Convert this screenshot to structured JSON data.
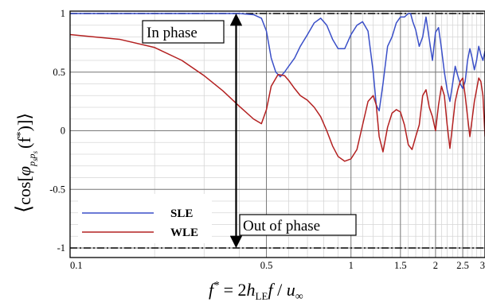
{
  "chart_data": {
    "type": "line",
    "title": "",
    "xscale": "log",
    "xlim": [
      0.1,
      3
    ],
    "ylim": [
      -1.1,
      1.1
    ],
    "grid": true,
    "legend_position": "bottom-left",
    "xlabel": {
      "lhs": "f",
      "lhs_sup": "*",
      "eq": " = 2",
      "h": "h",
      "h_sub": "LE",
      "f": "f",
      "slash": " / ",
      "u": "u",
      "u_sub": "∞"
    },
    "ylabel": {
      "open": "⟨",
      "cos": "cos[",
      "phi": "φ",
      "sub": "p",
      "sub2": "s",
      "sub3": "p",
      "sub4": "s",
      "arg": "(f",
      "argsup": "*",
      "close": ")]⟩"
    },
    "xticks": [
      {
        "v": 0.1,
        "label": "0.1"
      },
      {
        "v": 0.5,
        "label": "0.5"
      },
      {
        "v": 1,
        "label": "1"
      },
      {
        "v": 1.5,
        "label": "1.5"
      },
      {
        "v": 2,
        "label": "2"
      },
      {
        "v": 2.5,
        "label": "2.5"
      },
      {
        "v": 3,
        "label": "3"
      }
    ],
    "yticks": [
      {
        "v": 1,
        "label": "1"
      },
      {
        "v": 0.5,
        "label": "0.5"
      },
      {
        "v": 0,
        "label": "0"
      },
      {
        "v": -0.5,
        "label": "-0.5"
      },
      {
        "v": -1,
        "label": "-1"
      }
    ],
    "reference_lines": [
      1,
      -1
    ],
    "annotations": {
      "in_phase": "In phase",
      "out_of_phase": "Out of phase",
      "arrow_x": 0.39,
      "arrow_y": [
        1,
        -1
      ]
    },
    "series": [
      {
        "name": "SLE",
        "color": "#3a4fc8",
        "x": [
          0.1,
          0.2,
          0.3,
          0.4,
          0.45,
          0.48,
          0.5,
          0.52,
          0.54,
          0.56,
          0.58,
          0.6,
          0.63,
          0.66,
          0.7,
          0.74,
          0.78,
          0.82,
          0.86,
          0.9,
          0.95,
          1.0,
          1.05,
          1.1,
          1.15,
          1.2,
          1.23,
          1.26,
          1.3,
          1.35,
          1.4,
          1.45,
          1.5,
          1.55,
          1.6,
          1.63,
          1.66,
          1.7,
          1.75,
          1.8,
          1.85,
          1.9,
          1.95,
          2.0,
          2.05,
          2.1,
          2.15,
          2.2,
          2.25,
          2.3,
          2.35,
          2.4,
          2.45,
          2.5,
          2.55,
          2.6,
          2.65,
          2.7,
          2.75,
          2.8,
          2.85,
          2.9,
          2.95,
          3.0
        ],
        "y": [
          1,
          1,
          1,
          1,
          0.99,
          0.96,
          0.85,
          0.62,
          0.5,
          0.46,
          0.5,
          0.55,
          0.62,
          0.72,
          0.82,
          0.92,
          0.96,
          0.9,
          0.78,
          0.7,
          0.7,
          0.82,
          0.9,
          0.93,
          0.85,
          0.5,
          0.22,
          0.17,
          0.4,
          0.72,
          0.8,
          0.92,
          0.97,
          0.97,
          1.0,
          1.0,
          0.93,
          0.86,
          0.72,
          0.8,
          0.97,
          0.78,
          0.6,
          0.84,
          0.88,
          0.7,
          0.5,
          0.35,
          0.25,
          0.4,
          0.55,
          0.47,
          0.4,
          0.36,
          0.42,
          0.6,
          0.7,
          0.62,
          0.52,
          0.6,
          0.72,
          0.65,
          0.6,
          0.68
        ]
      },
      {
        "name": "WLE",
        "color": "#b32020",
        "x": [
          0.1,
          0.15,
          0.2,
          0.25,
          0.3,
          0.35,
          0.4,
          0.45,
          0.48,
          0.5,
          0.52,
          0.55,
          0.58,
          0.6,
          0.63,
          0.66,
          0.7,
          0.74,
          0.78,
          0.82,
          0.86,
          0.9,
          0.95,
          1.0,
          1.05,
          1.1,
          1.15,
          1.2,
          1.23,
          1.26,
          1.3,
          1.35,
          1.4,
          1.45,
          1.5,
          1.55,
          1.6,
          1.65,
          1.7,
          1.75,
          1.8,
          1.85,
          1.9,
          1.95,
          2.0,
          2.05,
          2.1,
          2.15,
          2.2,
          2.25,
          2.3,
          2.35,
          2.4,
          2.45,
          2.5,
          2.55,
          2.6,
          2.65,
          2.7,
          2.75,
          2.8,
          2.85,
          2.9,
          2.95,
          3.0
        ],
        "y": [
          0.82,
          0.78,
          0.71,
          0.6,
          0.47,
          0.34,
          0.21,
          0.1,
          0.06,
          0.18,
          0.38,
          0.48,
          0.47,
          0.43,
          0.36,
          0.3,
          0.26,
          0.2,
          0.12,
          0.0,
          -0.13,
          -0.22,
          -0.26,
          -0.24,
          -0.16,
          0.05,
          0.25,
          0.3,
          0.22,
          -0.05,
          -0.18,
          0.03,
          0.15,
          0.18,
          0.16,
          0.05,
          -0.12,
          -0.16,
          -0.05,
          0.05,
          0.3,
          0.35,
          0.2,
          0.12,
          0.0,
          0.22,
          0.38,
          0.3,
          0.05,
          -0.15,
          0.05,
          0.25,
          0.35,
          0.42,
          0.45,
          0.3,
          0.12,
          -0.05,
          0.1,
          0.25,
          0.35,
          0.45,
          0.42,
          0.3,
          -0.05
        ]
      }
    ]
  }
}
